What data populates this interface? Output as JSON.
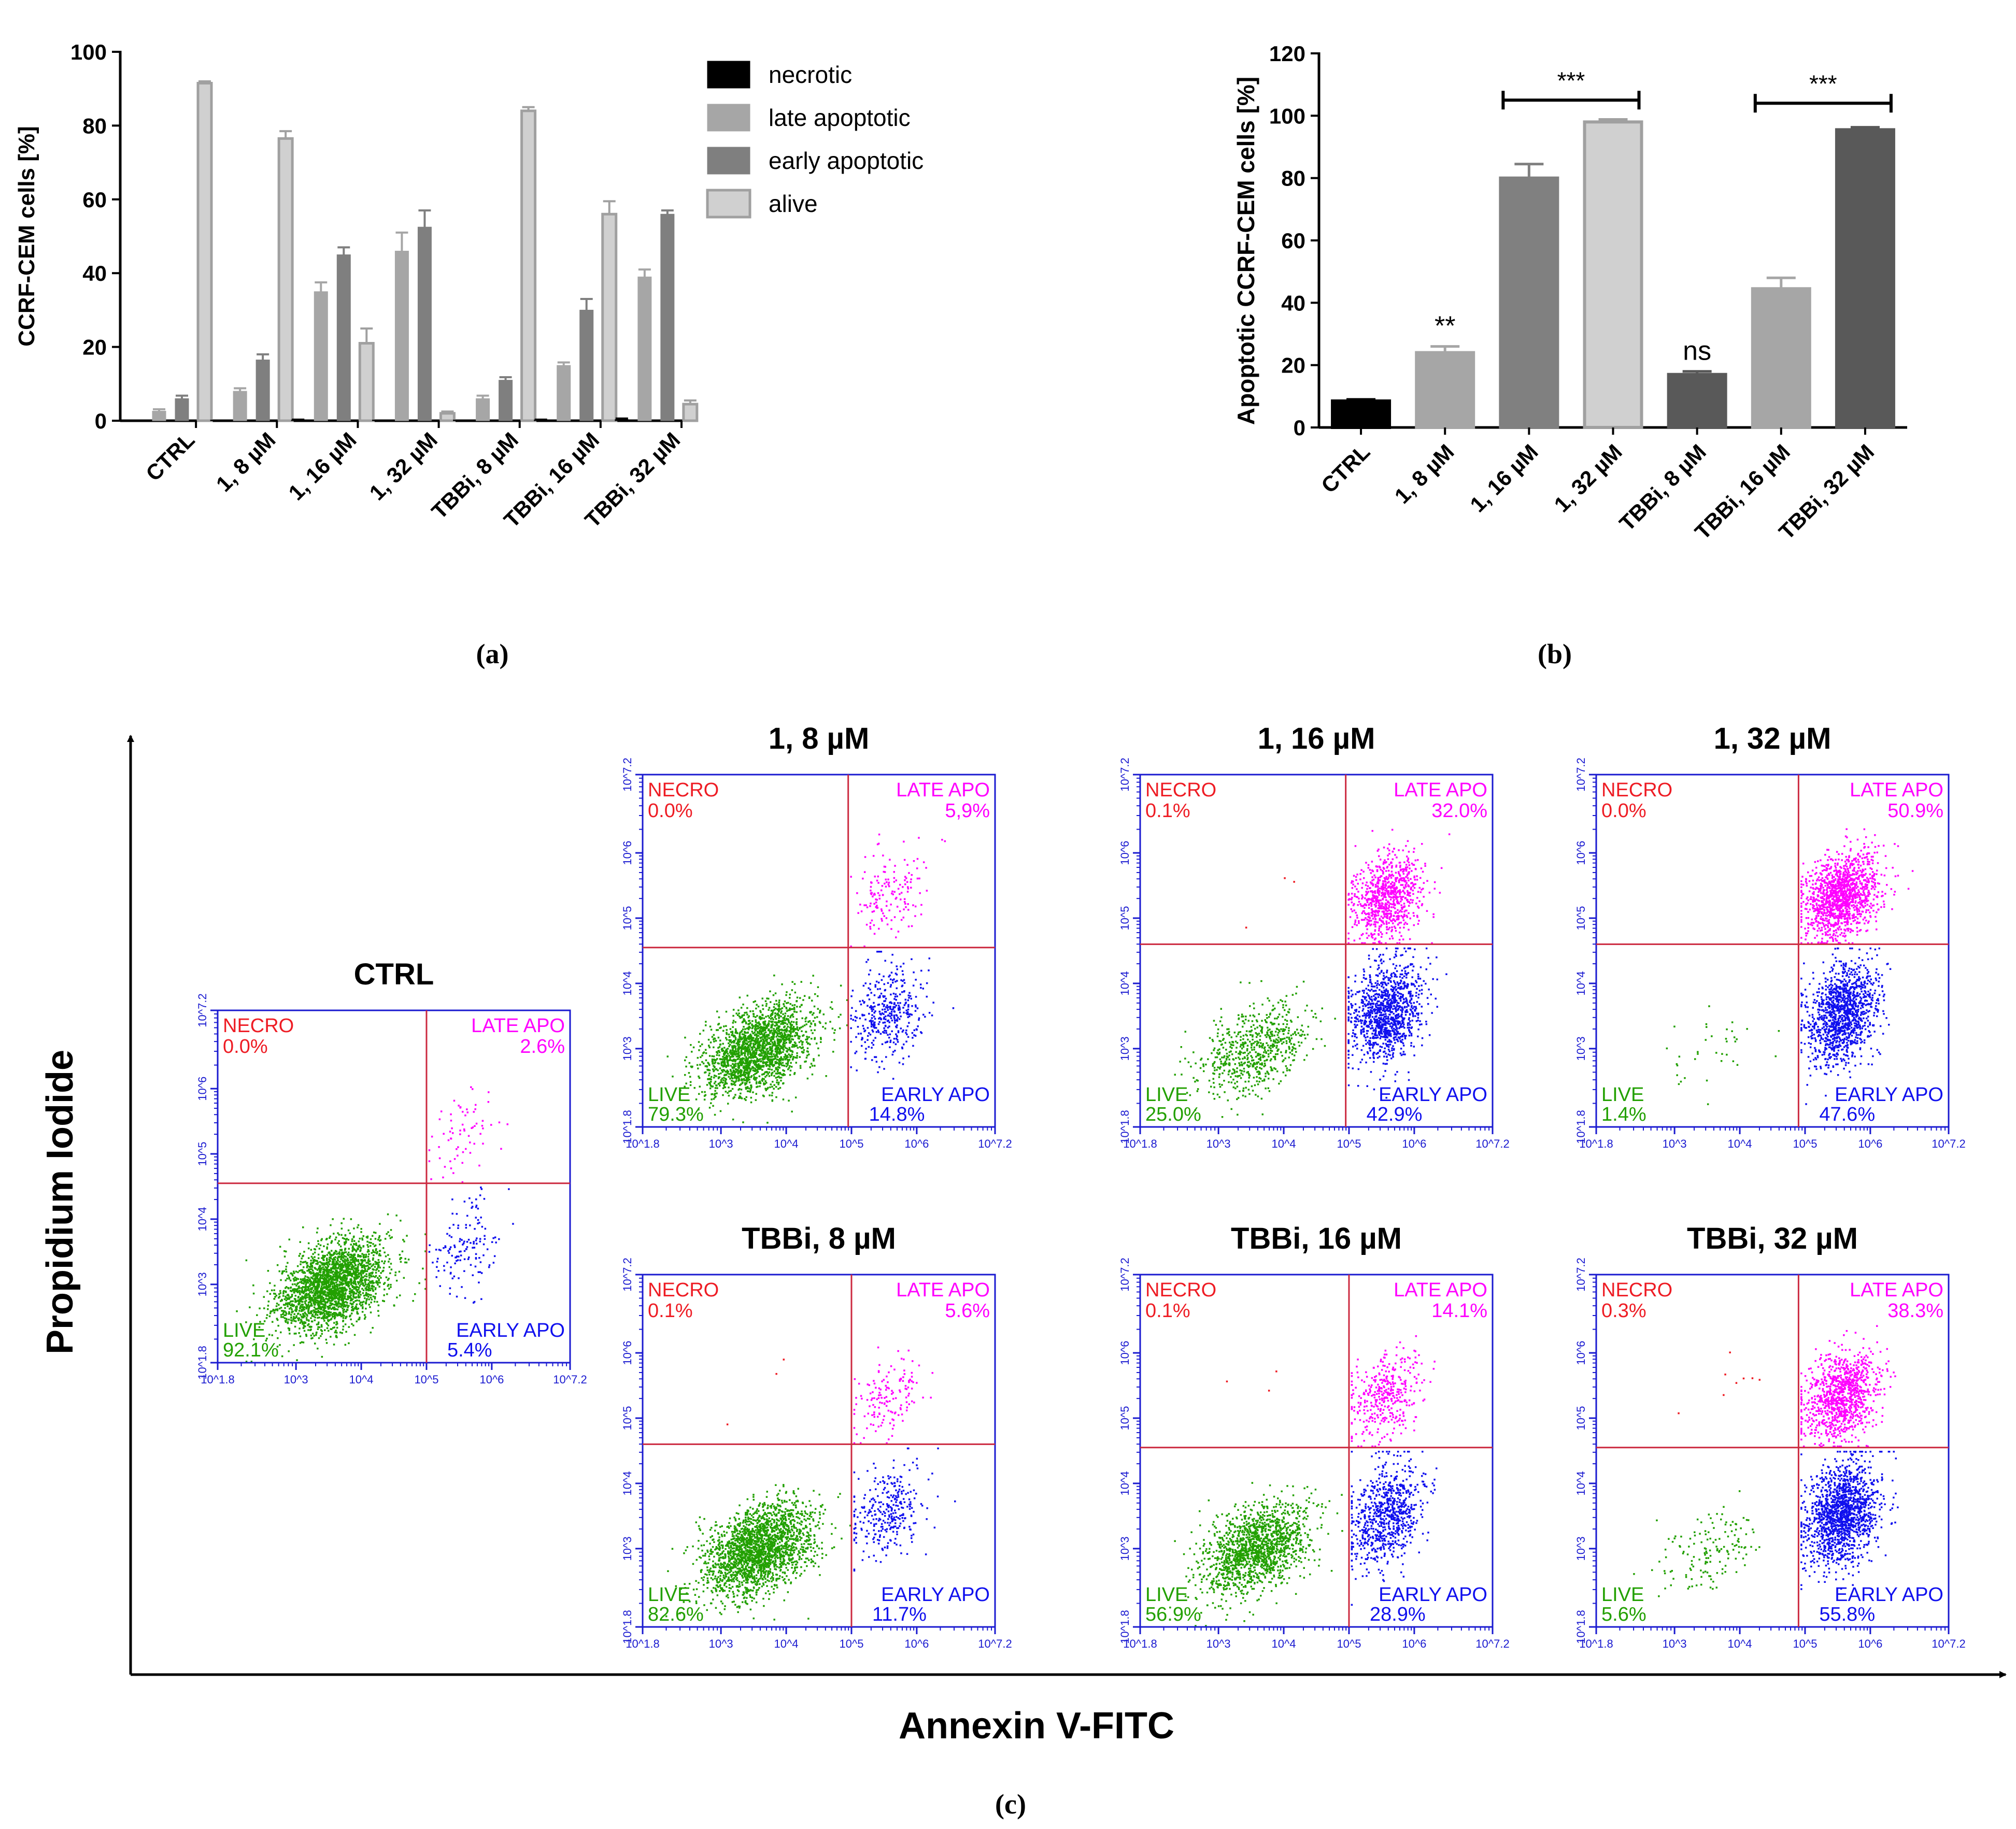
{
  "chart_data": [
    {
      "id": "a",
      "type": "bar",
      "ylabel": "CCRF-CEM cells [%]",
      "ylim": [
        0,
        100
      ],
      "yticks": [
        0,
        20,
        40,
        60,
        80,
        100
      ],
      "categories": [
        "CTRL",
        "1, 8 µM",
        "1, 16 µM",
        "1, 32 µM",
        "TBBi, 8 µM",
        "TBBi, 16 µM",
        "TBBi, 32 µM"
      ],
      "series": [
        {
          "name": "necrotic",
          "values": [
            0.0,
            0.0,
            0.1,
            0.0,
            0.1,
            0.1,
            0.3
          ],
          "errors": [
            0,
            0,
            0.2,
            0,
            0,
            0.2,
            0.3
          ],
          "color": "#000000"
        },
        {
          "name": "late apoptotic",
          "values": [
            2.6,
            8.0,
            35.0,
            46.0,
            6.0,
            15.0,
            39.0
          ],
          "errors": [
            0.5,
            0.8,
            2.5,
            5.0,
            0.8,
            0.8,
            2.0
          ],
          "color": "#a6a6a6"
        },
        {
          "name": "early apoptotic",
          "values": [
            6.0,
            16.5,
            45.0,
            52.5,
            11.0,
            30.0,
            56.0
          ],
          "errors": [
            0.8,
            1.5,
            2.0,
            4.5,
            0.8,
            3.0,
            1.0
          ],
          "color": "#7f7f7f"
        },
        {
          "name": "alive",
          "values": [
            91.5,
            76.5,
            21.0,
            2.0,
            84.0,
            56.0,
            4.5
          ],
          "errors": [
            0.5,
            2.0,
            4.0,
            0.5,
            1.0,
            3.5,
            1.0
          ],
          "color": "#d0d0d0"
        }
      ],
      "legend": "top-right, outside plot",
      "caption": "(a)"
    },
    {
      "id": "b",
      "type": "bar",
      "ylabel": "Apoptotic CCRF-CEM cells [%]",
      "ylim": [
        0,
        120
      ],
      "yticks": [
        0,
        20,
        40,
        60,
        80,
        100,
        120
      ],
      "categories": [
        "CTRL",
        "1, 8 µM",
        "1, 16 µM",
        "1, 32 µM",
        "TBBi, 8 µM",
        "TBBi, 16 µM",
        "TBBi, 32 µM"
      ],
      "values": [
        8.5,
        24.0,
        80.0,
        98.0,
        17.0,
        44.5,
        95.5
      ],
      "errors": [
        0.5,
        2.0,
        4.5,
        0.8,
        1.0,
        3.5,
        0.8
      ],
      "colors": [
        "#000000",
        "#a6a6a6",
        "#808080",
        "#d0d0d0",
        "#595959",
        "#a6a6a6",
        "#595959"
      ],
      "annotations": [
        {
          "text": "**",
          "category": 1
        },
        {
          "text": "ns",
          "category": 4
        }
      ],
      "brackets": [
        {
          "text": "***",
          "from": 2,
          "to": 3,
          "y": 105
        },
        {
          "text": "***",
          "from": 5,
          "to": 6,
          "y": 104
        }
      ],
      "caption": "(b)"
    },
    {
      "id": "c",
      "type": "scatter",
      "xlabel": "Annexin V-FITC",
      "ylabel": "Propidium Iodide",
      "tick_labels": [
        "10^1.8",
        "10^3",
        "10^4",
        "10^5",
        "10^6",
        "10^7.2"
      ],
      "tick_values": [
        1.8,
        3,
        4,
        5,
        6,
        7.2
      ],
      "quadrant_names": {
        "necro": "NECRO",
        "late": "LATE APO",
        "live": "LIVE",
        "early": "EARLY APO"
      },
      "quadrant_colors": {
        "necro": "#ee1c24",
        "late": "#ff00ff",
        "live": "#22a000",
        "early": "#1010ee"
      },
      "panels": [
        {
          "title": "CTRL",
          "necro": "0.0%",
          "late": "2.6%",
          "live": "92.1%",
          "early": "5.4%",
          "gate_x": 5.0,
          "gate_y": 4.55
        },
        {
          "title": "1, 8 µM",
          "necro": "0.0%",
          "late": "5,9%",
          "live": "79.3%",
          "early": "14.8%",
          "gate_x": 4.95,
          "gate_y": 4.55
        },
        {
          "title": "1, 16 µM",
          "necro": "0.1%",
          "late": "32.0%",
          "live": "25.0%",
          "early": "42.9%",
          "gate_x": 4.95,
          "gate_y": 4.6
        },
        {
          "title": "1, 32 µM",
          "necro": "0.0%",
          "late": "50.9%",
          "live": "1.4%",
          "early": "47.6%",
          "gate_x": 4.9,
          "gate_y": 4.6
        },
        {
          "title": "TBBi, 8 µM",
          "necro": "0.1%",
          "late": "5.6%",
          "live": "82.6%",
          "early": "11.7%",
          "gate_x": 5.0,
          "gate_y": 4.6
        },
        {
          "title": "TBBi, 16 µM",
          "necro": "0.1%",
          "late": "14.1%",
          "live": "56.9%",
          "early": "28.9%",
          "gate_x": 5.0,
          "gate_y": 4.55
        },
        {
          "title": "TBBi, 32 µM",
          "necro": "0.3%",
          "late": "38.3%",
          "live": "5.6%",
          "early": "55.8%",
          "gate_x": 4.9,
          "gate_y": 4.55
        }
      ],
      "caption": "(c)"
    }
  ]
}
